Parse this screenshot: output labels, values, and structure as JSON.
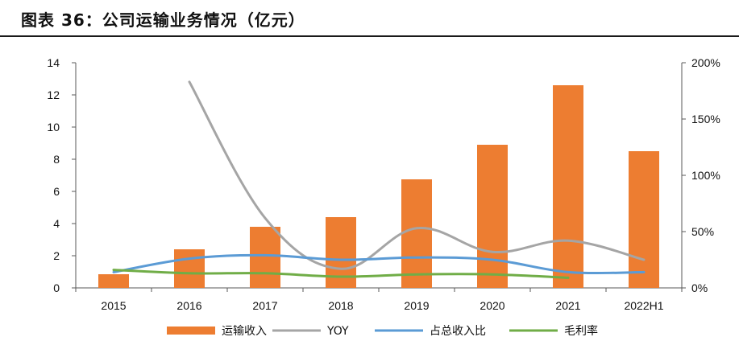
{
  "header": {
    "title": "图表 36：公司运输业务情况（亿元）"
  },
  "chart_data": {
    "type": "bar",
    "categories": [
      "2015",
      "2016",
      "2017",
      "2018",
      "2019",
      "2020",
      "2021",
      "2022H1"
    ],
    "left_axis": {
      "min": 0,
      "max": 14,
      "ticks": [
        "0",
        "2",
        "4",
        "6",
        "8",
        "10",
        "12",
        "14"
      ]
    },
    "right_axis": {
      "min": 0,
      "max": 200,
      "unit": "%",
      "ticks": [
        "0%",
        "50%",
        "100%",
        "150%",
        "200%"
      ]
    },
    "series": [
      {
        "name": "运输收入",
        "type": "bar",
        "axis": "left",
        "color": "#ED7D31",
        "values": [
          0.85,
          2.4,
          3.8,
          4.4,
          6.75,
          8.9,
          12.6,
          8.5
        ]
      },
      {
        "name": "YOY",
        "type": "line",
        "axis": "right",
        "color": "#A5A5A5",
        "values": [
          null,
          183,
          62,
          17,
          53,
          32,
          42,
          25
        ]
      },
      {
        "name": "占总收入比",
        "type": "line",
        "axis": "right",
        "color": "#5B9BD5",
        "values": [
          14,
          26,
          29,
          25,
          27,
          25,
          14,
          14
        ]
      },
      {
        "name": "毛利率",
        "type": "line",
        "axis": "right",
        "color": "#70AD47",
        "values": [
          16,
          13,
          13,
          10,
          12,
          12,
          9,
          null
        ]
      }
    ],
    "legend_position": "bottom",
    "grid": false
  }
}
